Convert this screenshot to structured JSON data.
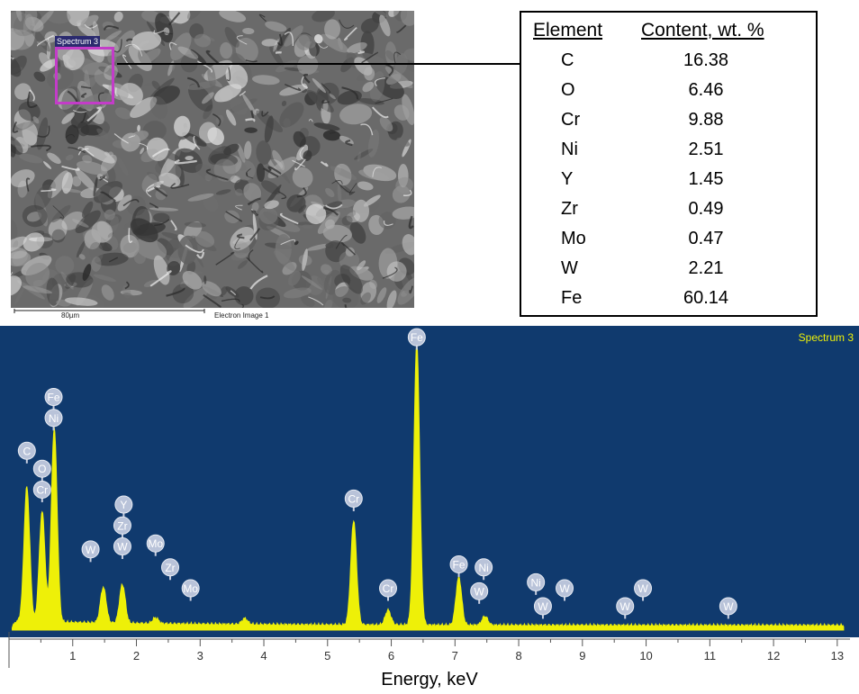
{
  "sem_image": {
    "spectrum_tag": "Spectrum 3",
    "scale_label": "80µm",
    "image_label": "Electron Image 1"
  },
  "composition_table": {
    "headers": [
      "Element",
      "Content, wt. %"
    ],
    "rows": [
      {
        "element": "C",
        "value": "16.38"
      },
      {
        "element": "O",
        "value": "6.46"
      },
      {
        "element": "Cr",
        "value": "9.88"
      },
      {
        "element": "Ni",
        "value": "2.51"
      },
      {
        "element": "Y",
        "value": "1.45"
      },
      {
        "element": "Zr",
        "value": "0.49"
      },
      {
        "element": "Mo",
        "value": "0.47"
      },
      {
        "element": "W",
        "value": "2.21"
      },
      {
        "element": "Fe",
        "value": "60.14"
      }
    ]
  },
  "chart_data": {
    "type": "line",
    "title": "Spectrum 3",
    "xlabel": "Energy, keV",
    "ylabel": "",
    "xlim": [
      0,
      13.2
    ],
    "ylim": [
      0,
      1.0
    ],
    "x_ticks": [
      1,
      2,
      3,
      4,
      5,
      6,
      7,
      8,
      9,
      10,
      11,
      12,
      13
    ],
    "background_color": "#103a6e",
    "fill_color": "#eef008",
    "peaks": [
      {
        "x": 0.28,
        "y": 0.45
      },
      {
        "x": 0.52,
        "y": 0.37
      },
      {
        "x": 0.71,
        "y": 0.65
      },
      {
        "x": 1.48,
        "y": 0.12
      },
      {
        "x": 1.78,
        "y": 0.13
      },
      {
        "x": 2.3,
        "y": 0.02
      },
      {
        "x": 3.7,
        "y": 0.02
      },
      {
        "x": 5.41,
        "y": 0.35
      },
      {
        "x": 5.95,
        "y": 0.05
      },
      {
        "x": 6.4,
        "y": 0.94
      },
      {
        "x": 7.06,
        "y": 0.16
      },
      {
        "x": 7.47,
        "y": 0.03
      }
    ],
    "peak_labels": [
      {
        "label": "Fe",
        "x": 0.7,
        "level": 0.78
      },
      {
        "label": "Ni",
        "x": 0.7,
        "level": 0.71
      },
      {
        "label": "C",
        "x": 0.28,
        "level": 0.6
      },
      {
        "label": "O",
        "x": 0.52,
        "level": 0.54
      },
      {
        "label": "Cr",
        "x": 0.52,
        "level": 0.47
      },
      {
        "label": "Y",
        "x": 1.8,
        "level": 0.42
      },
      {
        "label": "Zr",
        "x": 1.78,
        "level": 0.35
      },
      {
        "label": "W",
        "x": 1.78,
        "level": 0.28
      },
      {
        "label": "W",
        "x": 1.28,
        "level": 0.27
      },
      {
        "label": "Mo",
        "x": 2.3,
        "level": 0.29
      },
      {
        "label": "Zr",
        "x": 2.53,
        "level": 0.21
      },
      {
        "label": "Mo",
        "x": 2.85,
        "level": 0.14
      },
      {
        "label": "Cr",
        "x": 5.41,
        "level": 0.44
      },
      {
        "label": "Cr",
        "x": 5.95,
        "level": 0.14
      },
      {
        "label": "Fe",
        "x": 6.4,
        "level": 0.98
      },
      {
        "label": "Fe",
        "x": 7.06,
        "level": 0.22
      },
      {
        "label": "Ni",
        "x": 7.45,
        "level": 0.21
      },
      {
        "label": "W",
        "x": 7.38,
        "level": 0.13
      },
      {
        "label": "Ni",
        "x": 8.27,
        "level": 0.16
      },
      {
        "label": "W",
        "x": 8.72,
        "level": 0.14
      },
      {
        "label": "W",
        "x": 8.38,
        "level": 0.08
      },
      {
        "label": "W",
        "x": 9.95,
        "level": 0.14
      },
      {
        "label": "W",
        "x": 9.67,
        "level": 0.08
      },
      {
        "label": "W",
        "x": 11.29,
        "level": 0.08
      }
    ]
  }
}
